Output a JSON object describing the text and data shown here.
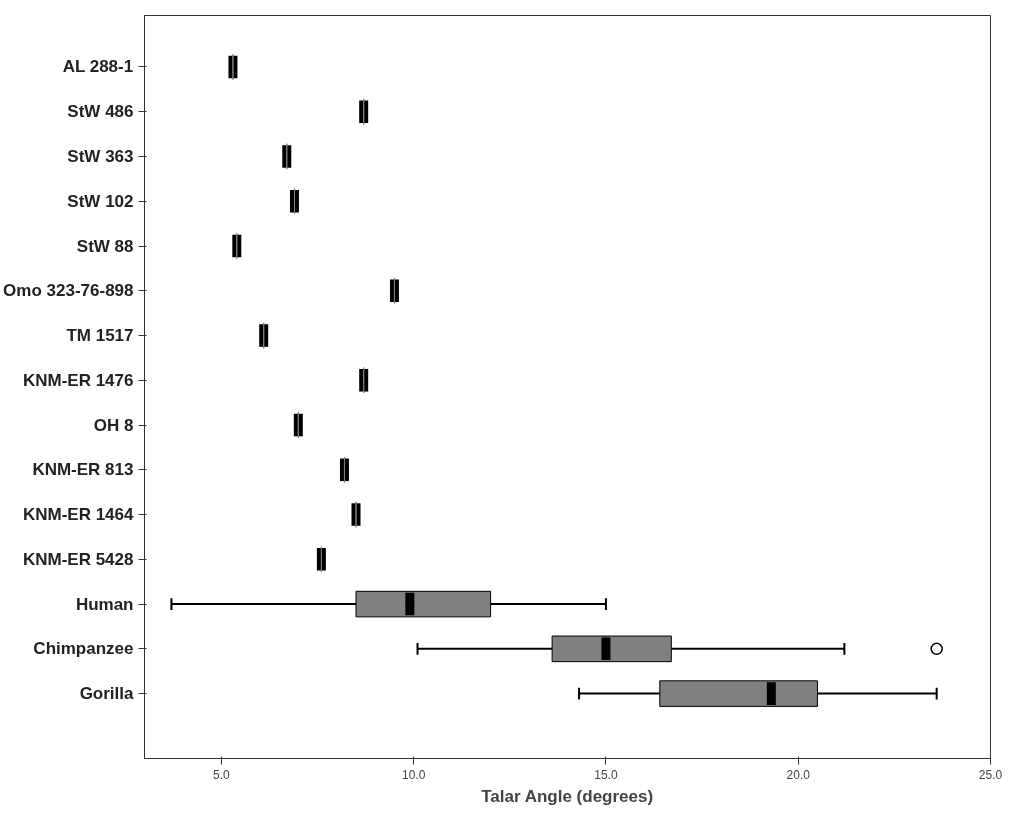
{
  "chart_data": {
    "type": "box",
    "orientation": "horizontal",
    "xlabel": "Talar Angle (degrees)",
    "categories": [
      "AL 288-1",
      "StW 486",
      "StW 363",
      "StW 102",
      "StW 88",
      "Omo 323-76-898",
      "TM 1517",
      "KNM-ER 1476",
      "OH 8",
      "KNM-ER 813",
      "KNM-ER 1464",
      "KNM-ER 5428",
      "Human",
      "Chimpanzee",
      "Gorilla"
    ],
    "color": "#808080",
    "boxes": [
      {
        "low": 5.3,
        "q1": 5.3,
        "median": 5.3,
        "q3": 5.3,
        "high": 5.3
      },
      {
        "low": 8.7,
        "q1": 8.7,
        "median": 8.7,
        "q3": 8.7,
        "high": 8.7
      },
      {
        "low": 6.7,
        "q1": 6.7,
        "median": 6.7,
        "q3": 6.7,
        "high": 6.7
      },
      {
        "low": 6.9,
        "q1": 6.9,
        "median": 6.9,
        "q3": 6.9,
        "high": 6.9
      },
      {
        "low": 5.4,
        "q1": 5.4,
        "median": 5.4,
        "q3": 5.4,
        "high": 5.4
      },
      {
        "low": 9.5,
        "q1": 9.5,
        "median": 9.5,
        "q3": 9.5,
        "high": 9.5
      },
      {
        "low": 6.1,
        "q1": 6.1,
        "median": 6.1,
        "q3": 6.1,
        "high": 6.1
      },
      {
        "low": 8.7,
        "q1": 8.7,
        "median": 8.7,
        "q3": 8.7,
        "high": 8.7
      },
      {
        "low": 7.0,
        "q1": 7.0,
        "median": 7.0,
        "q3": 7.0,
        "high": 7.0
      },
      {
        "low": 8.2,
        "q1": 8.2,
        "median": 8.2,
        "q3": 8.2,
        "high": 8.2
      },
      {
        "low": 8.5,
        "q1": 8.5,
        "median": 8.5,
        "q3": 8.5,
        "high": 8.5
      },
      {
        "low": 7.6,
        "q1": 7.6,
        "median": 7.6,
        "q3": 7.6,
        "high": 7.6
      },
      {
        "low": 3.7,
        "q1": 8.5,
        "median": 9.9,
        "q3": 12.0,
        "high": 15.0
      },
      {
        "low": 10.1,
        "q1": 13.6,
        "median": 15.0,
        "q3": 16.7,
        "high": 21.2,
        "outliers": [
          23.6
        ]
      },
      {
        "low": 14.3,
        "q1": 16.4,
        "median": 19.3,
        "q3": 20.5,
        "high": 23.6
      }
    ],
    "xlim": [
      3,
      25
    ],
    "xticks": [
      {
        "value": 5,
        "label": "5.0"
      },
      {
        "value": 10,
        "label": "10.0"
      },
      {
        "value": 15,
        "label": "15.0"
      },
      {
        "value": 20,
        "label": "20.0"
      },
      {
        "value": 25,
        "label": "25.0"
      }
    ]
  }
}
